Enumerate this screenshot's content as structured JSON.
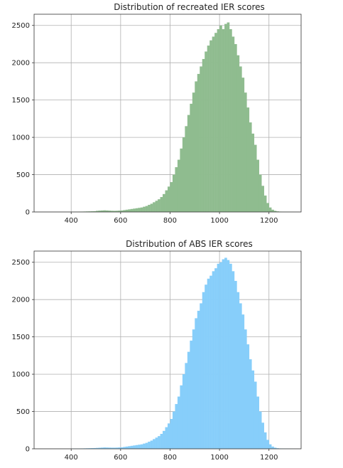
{
  "chart_data": [
    {
      "type": "bar",
      "title": "Distribution of recreated IER scores",
      "xlabel": "",
      "ylabel": "",
      "xlim": [
        250,
        1330
      ],
      "ylim": [
        0,
        2650
      ],
      "xticks": [
        400,
        600,
        800,
        1000,
        1200
      ],
      "yticks": [
        0,
        500,
        1000,
        1500,
        2000,
        2500
      ],
      "grid": true,
      "bar_color": "#8fbc8f",
      "bin_width": 10,
      "x": [
        400,
        410,
        420,
        430,
        440,
        450,
        460,
        470,
        480,
        490,
        500,
        510,
        520,
        530,
        540,
        550,
        560,
        570,
        580,
        590,
        600,
        610,
        620,
        630,
        640,
        650,
        660,
        670,
        680,
        690,
        700,
        710,
        720,
        730,
        740,
        750,
        760,
        770,
        780,
        790,
        800,
        810,
        820,
        830,
        840,
        850,
        860,
        870,
        880,
        890,
        900,
        910,
        920,
        930,
        940,
        950,
        960,
        970,
        980,
        990,
        1000,
        1010,
        1020,
        1030,
        1040,
        1050,
        1060,
        1070,
        1080,
        1090,
        1100,
        1110,
        1120,
        1130,
        1140,
        1150,
        1160,
        1170,
        1180,
        1190,
        1200,
        1210,
        1220,
        1230,
        1240,
        1250,
        1260,
        1270,
        1280,
        1290
      ],
      "values": [
        2,
        3,
        3,
        4,
        5,
        6,
        7,
        8,
        9,
        10,
        15,
        18,
        20,
        22,
        20,
        18,
        16,
        15,
        16,
        18,
        20,
        25,
        30,
        35,
        40,
        45,
        50,
        55,
        60,
        70,
        80,
        95,
        110,
        130,
        150,
        170,
        200,
        240,
        290,
        340,
        400,
        500,
        600,
        700,
        850,
        1000,
        1150,
        1300,
        1450,
        1600,
        1750,
        1850,
        1950,
        2050,
        2150,
        2230,
        2300,
        2350,
        2400,
        2450,
        2500,
        2450,
        2520,
        2540,
        2450,
        2350,
        2250,
        2100,
        1950,
        1800,
        1600,
        1400,
        1200,
        1050,
        900,
        700,
        500,
        350,
        220,
        120,
        60,
        30,
        15,
        8,
        5,
        3,
        2,
        2,
        1,
        1
      ]
    },
    {
      "type": "bar",
      "title": "Distribution of ABS IER scores",
      "xlabel": "",
      "ylabel": "",
      "xlim": [
        250,
        1330
      ],
      "ylim": [
        0,
        2650
      ],
      "xticks": [
        400,
        600,
        800,
        1000,
        1200
      ],
      "yticks": [
        0,
        500,
        1000,
        1500,
        2000,
        2500
      ],
      "grid": true,
      "bar_color": "#87cefa",
      "bin_width": 10,
      "x": [
        400,
        410,
        420,
        430,
        440,
        450,
        460,
        470,
        480,
        490,
        500,
        510,
        520,
        530,
        540,
        550,
        560,
        570,
        580,
        590,
        600,
        610,
        620,
        630,
        640,
        650,
        660,
        670,
        680,
        690,
        700,
        710,
        720,
        730,
        740,
        750,
        760,
        770,
        780,
        790,
        800,
        810,
        820,
        830,
        840,
        850,
        860,
        870,
        880,
        890,
        900,
        910,
        920,
        930,
        940,
        950,
        960,
        970,
        980,
        990,
        1000,
        1010,
        1020,
        1030,
        1040,
        1050,
        1060,
        1070,
        1080,
        1090,
        1100,
        1110,
        1120,
        1130,
        1140,
        1150,
        1160,
        1170,
        1180,
        1190,
        1200,
        1210,
        1220,
        1230,
        1240,
        1250,
        1260,
        1270,
        1280,
        1290
      ],
      "values": [
        2,
        3,
        3,
        4,
        5,
        6,
        7,
        8,
        9,
        10,
        12,
        14,
        16,
        18,
        17,
        16,
        15,
        15,
        16,
        18,
        20,
        25,
        30,
        35,
        40,
        45,
        50,
        55,
        60,
        70,
        80,
        95,
        110,
        130,
        150,
        170,
        200,
        240,
        290,
        340,
        400,
        500,
        600,
        700,
        850,
        1000,
        1150,
        1300,
        1450,
        1600,
        1750,
        1850,
        1950,
        2100,
        2200,
        2280,
        2320,
        2380,
        2420,
        2480,
        2500,
        2540,
        2560,
        2530,
        2480,
        2380,
        2250,
        2100,
        1950,
        1800,
        1600,
        1400,
        1200,
        1050,
        900,
        700,
        500,
        350,
        220,
        120,
        60,
        30,
        15,
        8,
        5,
        3,
        2,
        2,
        1,
        1
      ]
    }
  ]
}
